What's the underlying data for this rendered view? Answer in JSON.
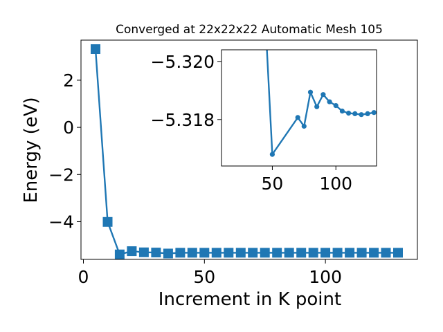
{
  "chart_data": [
    {
      "type": "line",
      "title": "Converged at 22x22x22 Automatic Mesh 105",
      "xlabel": "Increment in K point",
      "ylabel": "Energy (eV)",
      "xlim": [
        -1,
        138
      ],
      "ylim": [
        -5.6,
        3.7
      ],
      "xticks": [
        0,
        50,
        100
      ],
      "yticks": [
        2,
        0,
        -2,
        -4
      ],
      "ytick_labels": [
        "2",
        "0",
        "−2",
        "−4"
      ],
      "marker": "square",
      "color": "#1f77b4",
      "grid": false,
      "series": [
        {
          "x": [
            5,
            10,
            15,
            20,
            25,
            30,
            35,
            40,
            45,
            50,
            55,
            60,
            65,
            70,
            75,
            80,
            85,
            90,
            95,
            100,
            105,
            110,
            115,
            120,
            125,
            130
          ],
          "y": [
            3.32,
            -4.01,
            -5.39,
            -5.25,
            -5.3,
            -5.31,
            -5.35,
            -5.318,
            -5.317,
            -5.317,
            -5.317,
            -5.317,
            -5.317,
            -5.317,
            -5.317,
            -5.317,
            -5.317,
            -5.317,
            -5.317,
            -5.317,
            -5.317,
            -5.317,
            -5.317,
            -5.317,
            -5.317,
            -5.317
          ]
        }
      ]
    },
    {
      "type": "line",
      "inset": true,
      "xlim": [
        10,
        132
      ],
      "ylim": [
        -5.3164,
        -5.3204
      ],
      "xticks": [
        50,
        100
      ],
      "yticks": [
        -5.32,
        -5.318
      ],
      "ytick_labels": [
        "−5.320",
        "−5.318"
      ],
      "marker": "circle",
      "color": "#1f77b4",
      "series": [
        {
          "x": [
            45,
            50,
            70,
            75,
            80,
            85,
            90,
            95,
            100,
            105,
            110,
            115,
            120,
            125,
            130
          ],
          "y": [
            -5.321,
            -5.3168,
            -5.31807,
            -5.31777,
            -5.31894,
            -5.31844,
            -5.31886,
            -5.31861,
            -5.31848,
            -5.31829,
            -5.31822,
            -5.3182,
            -5.31817,
            -5.3182,
            -5.31824
          ]
        }
      ]
    }
  ]
}
